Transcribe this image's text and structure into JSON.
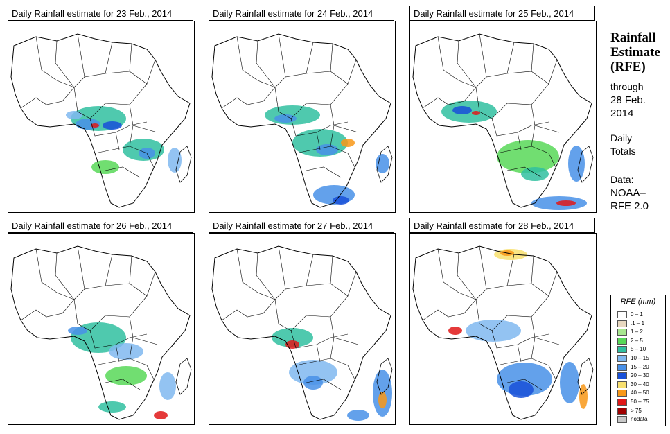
{
  "panels": [
    {
      "title": "Daily Rainfall estimate for  23 Feb., 2014"
    },
    {
      "title": "Daily Rainfall estimate for  24 Feb., 2014"
    },
    {
      "title": "Daily Rainfall estimate for  25 Feb., 2014"
    },
    {
      "title": "Daily Rainfall estimate for  26 Feb., 2014"
    },
    {
      "title": "Daily Rainfall estimate for  27 Feb., 2014"
    },
    {
      "title": "Daily Rainfall estimate for  28 Feb., 2014"
    }
  ],
  "sidebar": {
    "title_line1": "Rainfall",
    "title_line2": "Estimate",
    "title_line3": "(RFE)",
    "through_label": "through",
    "through_date_line1": "28 Feb.",
    "through_date_line2": "2014",
    "daily_line1": "Daily",
    "daily_line2": "Totals",
    "data_line1": "Data:",
    "data_line2": "NOAA–",
    "data_line3": "RFE 2.0"
  },
  "legend": {
    "title": "RFE (mm)",
    "items": [
      {
        "label": "0 – 1",
        "color": "#ffffff"
      },
      {
        "label": ".1 – 1",
        "color": "#e8d8c0"
      },
      {
        "label": "1 – 2",
        "color": "#a8e890"
      },
      {
        "label": "2 – 5",
        "color": "#58d858"
      },
      {
        "label": "5 – 10",
        "color": "#30c0a0"
      },
      {
        "label": "10 – 15",
        "color": "#80b8f0"
      },
      {
        "label": "15 – 20",
        "color": "#4890e8"
      },
      {
        "label": "20 – 30",
        "color": "#1850d8"
      },
      {
        "label": "30 – 40",
        "color": "#f8e070"
      },
      {
        "label": "40 – 50",
        "color": "#f89818"
      },
      {
        "label": "50 – 75",
        "color": "#e01818"
      },
      {
        "label": "> 75",
        "color": "#a00000"
      },
      {
        "label": "nodata",
        "color": "#c8c8c8"
      }
    ]
  }
}
